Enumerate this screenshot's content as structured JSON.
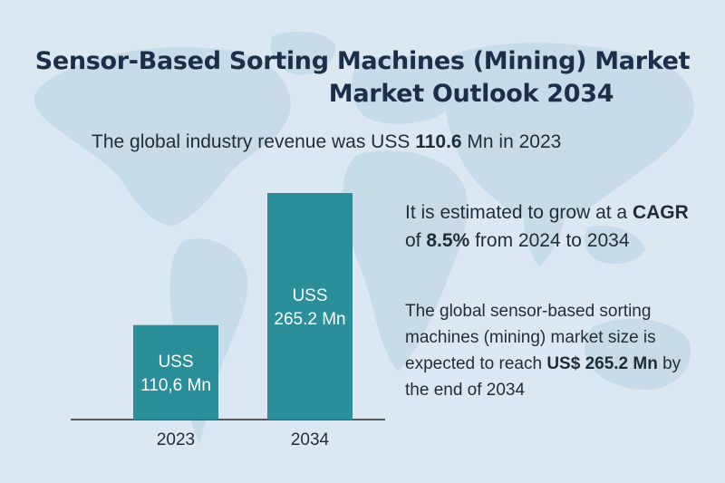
{
  "title_line1": "Sensor-Based Sorting Machines (Mining) Market",
  "title_line2": "Market Outlook 2034",
  "revenue_sentence": {
    "prefix": "The global industry revenue was USS ",
    "value": "110.6",
    "suffix": " Mn in 2023"
  },
  "cagr_text": {
    "part1": "It is estimated to grow at a ",
    "bold1": "CAGR",
    "part2": " of ",
    "bold2": "8.5%",
    "part3": " from 2024 to 2034"
  },
  "size_text": {
    "part1": "The global sensor-based sorting machines (mining) market size is expected to reach ",
    "bold": "US$ 265.2 Mn",
    "part2": " by the end of 2034"
  },
  "colors": {
    "bar": "#2a8f99",
    "background": "#dbe8f1",
    "map": "#c4d8e6",
    "title": "#1b3048",
    "axis": "#2b2b2b"
  },
  "chart_data": {
    "type": "bar",
    "categories": [
      "2023",
      "2034"
    ],
    "values": [
      110.6,
      265.2
    ],
    "bar_labels": [
      [
        "USS",
        "110,6 Mn"
      ],
      [
        "USS",
        "265.2 Mn"
      ]
    ],
    "unit": "Mn",
    "ylim": [
      0,
      265.2
    ],
    "grid": false
  }
}
